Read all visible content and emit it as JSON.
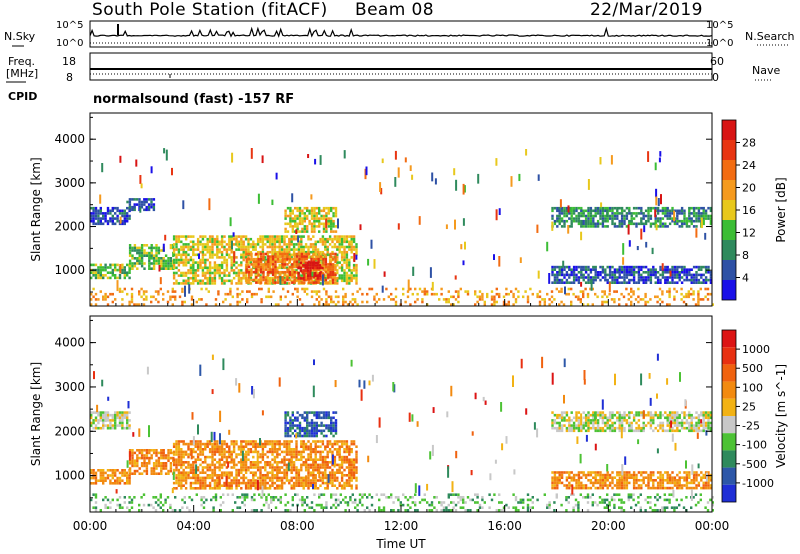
{
  "header": {
    "station": "South Pole Station (fitACF)",
    "beam": "Beam 08",
    "date": "22/Mar/2019"
  },
  "strip_panels": {
    "nsky_label": "N.Sky",
    "nsearch_label": "N.Search",
    "nsky_ticks": [
      "10^5",
      "10^0"
    ],
    "nsearch_ticks": [
      "10^5",
      "10^0"
    ],
    "freq_label_top": "Freq.",
    "freq_label_units": "[MHz]",
    "freq_ticks": [
      "18",
      "8"
    ],
    "nave_label": "Nave",
    "nave_ticks": [
      "60",
      "0"
    ],
    "cpid_label": "CPID",
    "cpid_text": "normalsound (fast) -157 RF"
  },
  "colors": {
    "power_scale": [
      "#1a10e8",
      "#2e51a5",
      "#2f8a5d",
      "#3cbd35",
      "#e8c81c",
      "#f59a1e",
      "#f26c12",
      "#e83512",
      "#d81414"
    ],
    "velocity_scale": [
      "#1f2fd6",
      "#2d57a8",
      "#2e8a5c",
      "#4cc234",
      "#c8c8c8",
      "#f2b214",
      "#f28a10",
      "#f0620f",
      "#e83011",
      "#dc1414"
    ]
  },
  "chart_data": [
    {
      "type": "heatmap",
      "name": "power-panel",
      "ylabel": "Slant Range [km]",
      "colorbar_label": "Power [dB]",
      "colorbar_ticks": [
        "28",
        "24",
        "20",
        "16",
        "12",
        "8",
        "4"
      ],
      "y_ticks": [
        "4000",
        "3000",
        "2000",
        "1000"
      ],
      "ylim": [
        180,
        4600
      ],
      "xlim_hours": [
        0,
        24
      ],
      "regions": [
        {
          "t0": 0.0,
          "t1": 1.5,
          "r0": 2050,
          "r1": 2450,
          "level": 1
        },
        {
          "t0": 1.4,
          "t1": 2.5,
          "r0": 2400,
          "r1": 2650,
          "level": 1
        },
        {
          "t0": 0.0,
          "t1": 1.5,
          "r0": 850,
          "r1": 1150,
          "level": 3
        },
        {
          "t0": 1.5,
          "t1": 3.2,
          "r0": 1050,
          "r1": 1600,
          "level": 3
        },
        {
          "t0": 3.2,
          "t1": 10.3,
          "r0": 700,
          "r1": 1800,
          "level": 4
        },
        {
          "t0": 6.0,
          "t1": 9.5,
          "r0": 700,
          "r1": 1400,
          "level": 6
        },
        {
          "t0": 8.0,
          "t1": 9.0,
          "r0": 800,
          "r1": 1200,
          "level": 8
        },
        {
          "t0": 7.5,
          "t1": 9.5,
          "r0": 1900,
          "r1": 2450,
          "level": 4
        },
        {
          "t0": 17.8,
          "t1": 24.0,
          "r0": 2000,
          "r1": 2450,
          "level": 2
        },
        {
          "t0": 17.8,
          "t1": 24.0,
          "r0": 700,
          "r1": 1100,
          "level": 1
        },
        {
          "t0": 0.0,
          "t1": 24.0,
          "r0": 200,
          "r1": 600,
          "level": 5
        }
      ]
    },
    {
      "type": "heatmap",
      "name": "velocity-panel",
      "ylabel": "Slant Range [km]",
      "xlabel": "Time UT",
      "colorbar_label": "Velocity [m s^-1]",
      "colorbar_ticks": [
        "1000",
        "500",
        "100",
        "25",
        "-25",
        "-100",
        "-500",
        "-1000"
      ],
      "x_ticks": [
        "00:00",
        "04:00",
        "08:00",
        "12:00",
        "16:00",
        "20:00",
        "00:00"
      ],
      "y_ticks": [
        "4000",
        "3000",
        "2000",
        "1000"
      ],
      "ylim": [
        180,
        4600
      ],
      "xlim_hours": [
        0,
        24
      ],
      "regions": [
        {
          "t0": 0.0,
          "t1": 1.5,
          "r0": 2050,
          "r1": 2450,
          "level": 4
        },
        {
          "t0": 0.0,
          "t1": 1.5,
          "r0": 850,
          "r1": 1150,
          "level": 6
        },
        {
          "t0": 1.5,
          "t1": 3.2,
          "r0": 1050,
          "r1": 1600,
          "level": 6
        },
        {
          "t0": 3.2,
          "t1": 10.3,
          "r0": 700,
          "r1": 1800,
          "level": 6
        },
        {
          "t0": 7.5,
          "t1": 9.5,
          "r0": 1900,
          "r1": 2450,
          "level": 1
        },
        {
          "t0": 17.8,
          "t1": 24.0,
          "r0": 2000,
          "r1": 2450,
          "level": 4
        },
        {
          "t0": 17.8,
          "t1": 24.0,
          "r0": 700,
          "r1": 1100,
          "level": 6
        },
        {
          "t0": 0.0,
          "t1": 24.0,
          "r0": 200,
          "r1": 600,
          "level": 3
        }
      ]
    }
  ]
}
